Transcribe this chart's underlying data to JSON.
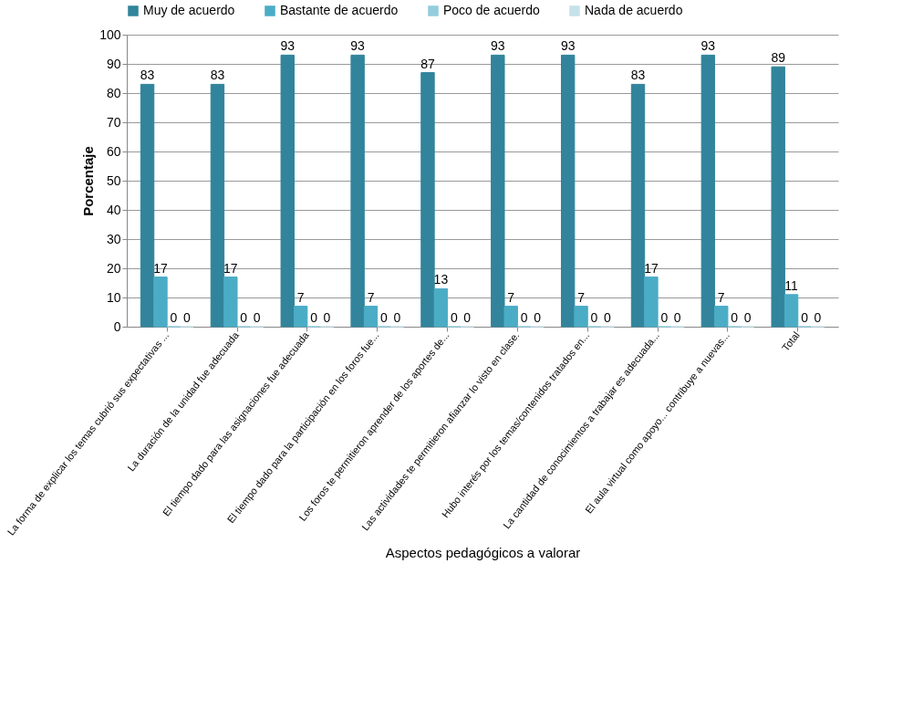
{
  "chart_data": {
    "type": "bar",
    "xlabel": "Aspectos pedagógicos  a valorar",
    "ylabel": "Porcentaje",
    "categories": [
      "La forma de explicar los temas cubrió sus expectativas ...",
      "La duración de la unidad  fue adecuada",
      "El tiempo dado para  las asignaciones fue adecuada",
      "El tiempo dado para   la participación  en los foros fue...",
      "Los foros te permitieron aprender de los aportes de...",
      "Las actividades te permitieron afianzar  lo visto en clase.",
      "Hubo interés por los temas/contenidos tratados en...",
      "La cantidad de conocimientos a trabajar  es adecuada...",
      "El aula virtual como apoyo... contribuye a nuevas...",
      "Total"
    ],
    "series": [
      {
        "name": "Muy de acuerdo",
        "color": "#31849b",
        "values": [
          83,
          83,
          93,
          93,
          87,
          93,
          93,
          83,
          93,
          89
        ]
      },
      {
        "name": "Bastante de acuerdo",
        "color": "#4bacc6",
        "values": [
          17,
          17,
          7,
          7,
          13,
          7,
          7,
          17,
          7,
          11
        ]
      },
      {
        "name": "Poco de acuerdo",
        "color": "#93cddd",
        "values": [
          0,
          0,
          0,
          0,
          0,
          0,
          0,
          0,
          0,
          0
        ]
      },
      {
        "name": "Nada de acuerdo",
        "color": "#c6e1ea",
        "values": [
          0,
          0,
          0,
          0,
          0,
          0,
          0,
          0,
          0,
          0
        ]
      }
    ],
    "ylim": [
      0,
      100
    ],
    "yticks": [
      0,
      10,
      20,
      30,
      40,
      50,
      60,
      70,
      80,
      90,
      100
    ],
    "grid": "y",
    "legend": "top",
    "data_labels": true
  }
}
